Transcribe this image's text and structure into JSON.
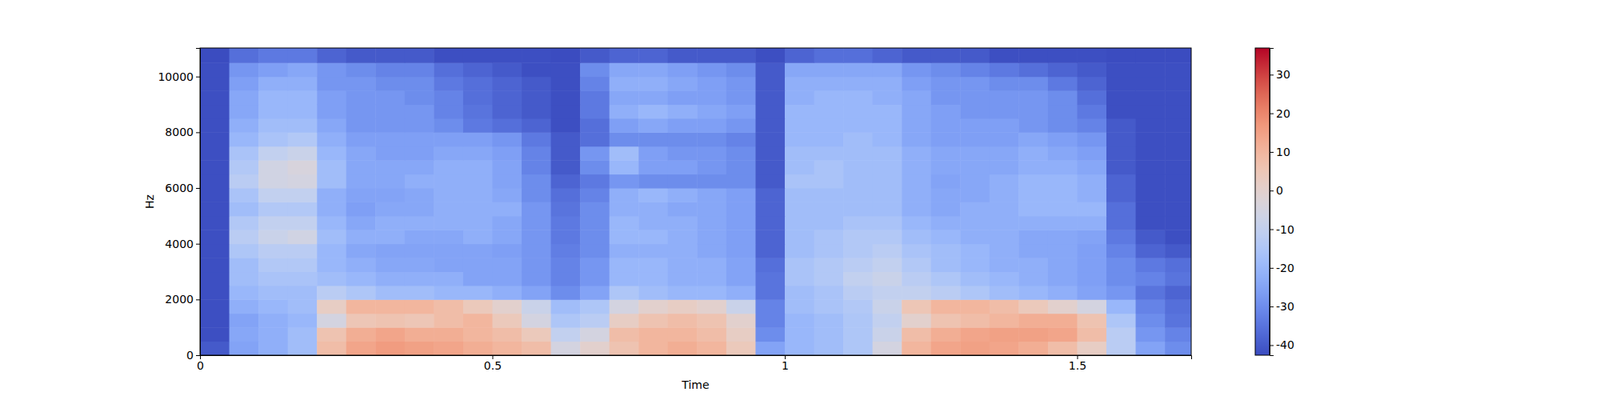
{
  "chart_data": {
    "type": "heatmap",
    "x_label": "Time",
    "y_label": "Hz",
    "xlim": [
      0,
      1.695
    ],
    "ylim": [
      0,
      11025
    ],
    "xticks": [
      0,
      0.5,
      1,
      1.5
    ],
    "yticks": [
      0,
      2000,
      4000,
      6000,
      8000,
      10000
    ],
    "x_edges": [
      0,
      0.05,
      0.1,
      0.15,
      0.2,
      0.25,
      0.3,
      0.35,
      0.4,
      0.45,
      0.5,
      0.55,
      0.6,
      0.65,
      0.7,
      0.75,
      0.8,
      0.85,
      0.9,
      0.95,
      1,
      1.05,
      1.1,
      1.15,
      1.2,
      1.25,
      1.3,
      1.35,
      1.4,
      1.45,
      1.5,
      1.55,
      1.6,
      1.65,
      1.695
    ],
    "y_edges": [
      0,
      500,
      1000,
      1500,
      2000,
      2500,
      3000,
      3500,
      4000,
      4500,
      5000,
      5500,
      6000,
      6500,
      7000,
      7500,
      8000,
      8500,
      9000,
      9500,
      10000,
      10500,
      11025
    ],
    "cells": [
      [
        -40,
        -25,
        -22,
        -18,
        8,
        14,
        16,
        15,
        14,
        12,
        10,
        8,
        -5,
        0,
        6,
        10,
        12,
        10,
        4,
        -25,
        -20,
        -18,
        -15,
        -5,
        10,
        14,
        15,
        14,
        12,
        8,
        2,
        -12,
        -25,
        -30
      ],
      [
        -42,
        -24,
        -22,
        -18,
        6,
        12,
        14,
        12,
        12,
        10,
        8,
        4,
        -10,
        -5,
        8,
        10,
        10,
        8,
        2,
        -30,
        -20,
        -18,
        -15,
        -8,
        8,
        12,
        14,
        15,
        15,
        14,
        8,
        -12,
        -28,
        -32
      ],
      [
        -42,
        -25,
        -22,
        -20,
        -5,
        5,
        6,
        5,
        8,
        10,
        4,
        -5,
        -15,
        -12,
        2,
        6,
        8,
        6,
        0,
        -32,
        -20,
        -18,
        -15,
        -10,
        0,
        6,
        8,
        10,
        12,
        12,
        6,
        -15,
        -30,
        -35
      ],
      [
        -42,
        -22,
        -20,
        -18,
        2,
        10,
        10,
        10,
        8,
        4,
        0,
        -8,
        -18,
        -15,
        -5,
        0,
        2,
        0,
        -8,
        -32,
        -18,
        -16,
        -14,
        -8,
        5,
        10,
        10,
        8,
        4,
        0,
        -5,
        -20,
        -32,
        -36
      ],
      [
        -42,
        -20,
        -18,
        -18,
        -12,
        -15,
        -18,
        -18,
        -20,
        -20,
        -22,
        -25,
        -30,
        -25,
        -15,
        -18,
        -20,
        -20,
        -22,
        -35,
        -18,
        -16,
        -12,
        -10,
        -10,
        -12,
        -15,
        -18,
        -20,
        -22,
        -25,
        -28,
        -35,
        -38
      ],
      [
        -42,
        -18,
        -16,
        -16,
        -18,
        -20,
        -22,
        -22,
        -22,
        -25,
        -25,
        -28,
        -32,
        -28,
        -20,
        -20,
        -22,
        -22,
        -25,
        -35,
        -16,
        -14,
        -10,
        -8,
        -12,
        -15,
        -18,
        -20,
        -22,
        -24,
        -26,
        -30,
        -32,
        -35
      ],
      [
        -42,
        -18,
        -14,
        -14,
        -20,
        -22,
        -24,
        -24,
        -25,
        -25,
        -25,
        -28,
        -32,
        -28,
        -20,
        -20,
        -22,
        -22,
        -25,
        -36,
        -16,
        -14,
        -12,
        -10,
        -14,
        -18,
        -20,
        -22,
        -22,
        -24,
        -26,
        -30,
        -34,
        -36
      ],
      [
        -42,
        -15,
        -12,
        -12,
        -20,
        -24,
        -25,
        -25,
        -25,
        -25,
        -26,
        -28,
        -33,
        -30,
        -22,
        -22,
        -22,
        -24,
        -26,
        -38,
        -18,
        -16,
        -14,
        -12,
        -16,
        -18,
        -20,
        -22,
        -24,
        -24,
        -26,
        -32,
        -38,
        -40
      ],
      [
        -42,
        -12,
        -8,
        -6,
        -18,
        -22,
        -22,
        -24,
        -24,
        -22,
        -24,
        -28,
        -34,
        -30,
        -20,
        -20,
        -22,
        -24,
        -26,
        -38,
        -18,
        -16,
        -14,
        -14,
        -18,
        -20,
        -22,
        -22,
        -24,
        -24,
        -25,
        -34,
        -40,
        -42
      ],
      [
        -42,
        -14,
        -10,
        -10,
        -20,
        -24,
        -22,
        -22,
        -22,
        -22,
        -24,
        -28,
        -34,
        -30,
        -20,
        -22,
        -22,
        -24,
        -26,
        -38,
        -18,
        -18,
        -16,
        -16,
        -20,
        -22,
        -22,
        -22,
        -22,
        -22,
        -22,
        -36,
        -42,
        -42
      ],
      [
        -42,
        -18,
        -14,
        -14,
        -22,
        -26,
        -24,
        -24,
        -22,
        -22,
        -22,
        -28,
        -35,
        -30,
        -22,
        -22,
        -24,
        -24,
        -26,
        -38,
        -18,
        -18,
        -18,
        -18,
        -22,
        -24,
        -22,
        -22,
        -20,
        -20,
        -20,
        -36,
        -42,
        -42
      ],
      [
        -42,
        -16,
        -10,
        -10,
        -22,
        -25,
        -25,
        -24,
        -22,
        -22,
        -24,
        -30,
        -36,
        -32,
        -22,
        -20,
        -22,
        -24,
        -26,
        -38,
        -18,
        -18,
        -18,
        -18,
        -22,
        -24,
        -24,
        -22,
        -20,
        -20,
        -22,
        -38,
        -42,
        -42
      ],
      [
        -42,
        -12,
        -6,
        -5,
        -18,
        -24,
        -24,
        -22,
        -22,
        -22,
        -25,
        -30,
        -38,
        -34,
        -28,
        -30,
        -30,
        -30,
        -30,
        -40,
        -16,
        -16,
        -18,
        -18,
        -22,
        -25,
        -24,
        -22,
        -20,
        -20,
        -22,
        -38,
        -42,
        -42
      ],
      [
        -42,
        -14,
        -6,
        -4,
        -18,
        -24,
        -24,
        -24,
        -22,
        -22,
        -25,
        -32,
        -40,
        -30,
        -20,
        -26,
        -26,
        -28,
        -30,
        -40,
        -18,
        -16,
        -18,
        -18,
        -22,
        -24,
        -24,
        -24,
        -22,
        -22,
        -24,
        -40,
        -42,
        -42
      ],
      [
        -42,
        -16,
        -10,
        -8,
        -20,
        -24,
        -26,
        -26,
        -24,
        -24,
        -26,
        -32,
        -40,
        -28,
        -18,
        -26,
        -28,
        -28,
        -30,
        -40,
        -18,
        -18,
        -18,
        -18,
        -22,
        -24,
        -24,
        -24,
        -22,
        -24,
        -26,
        -40,
        -42,
        -42
      ],
      [
        -42,
        -20,
        -16,
        -14,
        -22,
        -26,
        -26,
        -26,
        -26,
        -26,
        -28,
        -34,
        -40,
        -36,
        -30,
        -30,
        -30,
        -30,
        -32,
        -40,
        -20,
        -20,
        -18,
        -20,
        -24,
        -26,
        -26,
        -26,
        -24,
        -26,
        -28,
        -40,
        -42,
        -42
      ],
      [
        -42,
        -22,
        -18,
        -18,
        -24,
        -28,
        -28,
        -28,
        -30,
        -34,
        -36,
        -38,
        -42,
        -36,
        -26,
        -24,
        -26,
        -26,
        -28,
        -40,
        -20,
        -20,
        -20,
        -20,
        -24,
        -26,
        -26,
        -26,
        -28,
        -30,
        -32,
        -40,
        -42,
        -42
      ],
      [
        -42,
        -24,
        -20,
        -20,
        -26,
        -28,
        -28,
        -28,
        -32,
        -35,
        -38,
        -40,
        -42,
        -34,
        -22,
        -20,
        -22,
        -24,
        -26,
        -40,
        -20,
        -20,
        -20,
        -20,
        -24,
        -26,
        -28,
        -28,
        -28,
        -30,
        -34,
        -42,
        -42,
        -42
      ],
      [
        -42,
        -24,
        -20,
        -20,
        -26,
        -28,
        -28,
        -30,
        -32,
        -36,
        -38,
        -40,
        -42,
        -34,
        -24,
        -24,
        -26,
        -26,
        -28,
        -40,
        -22,
        -20,
        -20,
        -22,
        -24,
        -28,
        -28,
        -28,
        -28,
        -30,
        -36,
        -42,
        -42,
        -42
      ],
      [
        -42,
        -26,
        -22,
        -22,
        -28,
        -28,
        -30,
        -30,
        -34,
        -36,
        -38,
        -40,
        -42,
        -32,
        -22,
        -22,
        -24,
        -26,
        -28,
        -40,
        -22,
        -22,
        -22,
        -22,
        -26,
        -28,
        -28,
        -30,
        -30,
        -34,
        -38,
        -42,
        -42,
        -42
      ],
      [
        -42,
        -28,
        -26,
        -24,
        -28,
        -30,
        -32,
        -32,
        -36,
        -38,
        -40,
        -42,
        -42,
        -30,
        -24,
        -24,
        -26,
        -28,
        -30,
        -40,
        -24,
        -24,
        -24,
        -24,
        -28,
        -30,
        -32,
        -34,
        -36,
        -38,
        -40,
        -42,
        -42,
        -42
      ],
      [
        -43,
        -36,
        -34,
        -34,
        -38,
        -40,
        -40,
        -40,
        -42,
        -42,
        -42,
        -42,
        -43,
        -40,
        -38,
        -38,
        -40,
        -40,
        -40,
        -42,
        -38,
        -36,
        -36,
        -38,
        -40,
        -40,
        -40,
        -42,
        -42,
        -42,
        -42,
        -43,
        -43,
        -43
      ]
    ],
    "colorbar_lim": [
      -42.6,
      36.9
    ],
    "colorbar_ticks": [
      -40,
      -30,
      -20,
      -10,
      0,
      10,
      20,
      30
    ]
  }
}
